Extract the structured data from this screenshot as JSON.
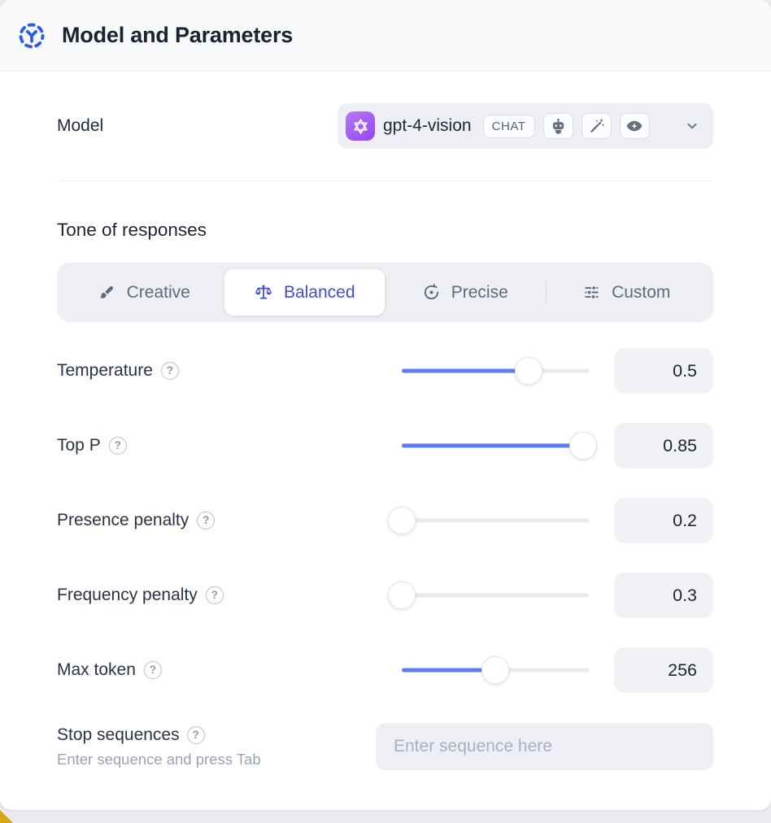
{
  "header": {
    "title": "Model and Parameters"
  },
  "model": {
    "label": "Model",
    "selected": "gpt-4-vision",
    "type_badge": "CHAT",
    "capability_icons": [
      "robot-icon",
      "magic-wand-icon",
      "vision-eye-icon"
    ]
  },
  "tone": {
    "heading": "Tone of responses",
    "options": [
      {
        "label": "Creative",
        "icon": "paintbrush-icon",
        "selected": false
      },
      {
        "label": "Balanced",
        "icon": "balance-scale-icon",
        "selected": true
      },
      {
        "label": "Precise",
        "icon": "target-icon",
        "selected": false
      },
      {
        "label": "Custom",
        "icon": "sliders-icon",
        "selected": false
      }
    ]
  },
  "parameters": [
    {
      "label": "Temperature",
      "value": "0.5",
      "fill_pct": 68
    },
    {
      "label": "Top P",
      "value": "0.85",
      "fill_pct": 97
    },
    {
      "label": "Presence penalty",
      "value": "0.2",
      "fill_pct": 0
    },
    {
      "label": "Frequency penalty",
      "value": "0.3",
      "fill_pct": 0
    },
    {
      "label": "Max token",
      "value": "256",
      "fill_pct": 50
    }
  ],
  "stop_sequences": {
    "label": "Stop sequences",
    "hint": "Enter sequence and press Tab",
    "placeholder": "Enter sequence here"
  },
  "ui": {
    "help_glyph": "?"
  },
  "colors": {
    "accent_indigo": "#444bd9",
    "slider_blue": "#5e7eef",
    "brand_purple": "#9e56f2",
    "header_icon_blue": "#2f5ce6",
    "panel_gray": "#edeff4",
    "gold_corner": "#d9a514"
  }
}
